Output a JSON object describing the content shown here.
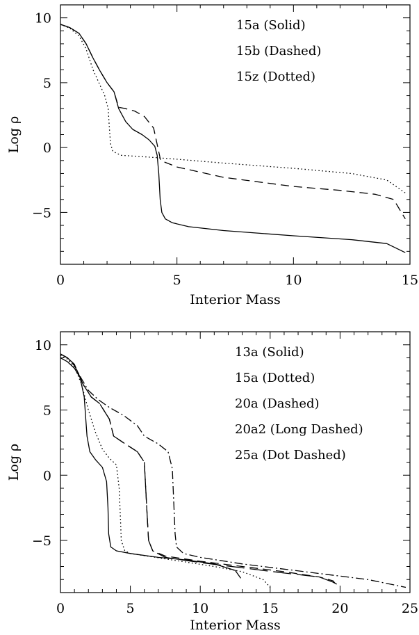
{
  "chart_data": [
    {
      "type": "line",
      "xlabel": "Interior Mass",
      "ylabel": "Log ρ",
      "xlim": [
        0,
        15
      ],
      "ylim": [
        -9,
        11
      ],
      "xticks": [
        0,
        5,
        10,
        15
      ],
      "yticks": [
        -5,
        0,
        5,
        10
      ],
      "grid": false,
      "legend_position": "top-right",
      "legend": [
        "15a (Solid)",
        "15b (Dashed)",
        "15z (Dotted)"
      ],
      "series": [
        {
          "name": "15a",
          "style": "solid",
          "points": [
            [
              0,
              9.5
            ],
            [
              0.4,
              9.25
            ],
            [
              0.8,
              8.8
            ],
            [
              1.1,
              8.0
            ],
            [
              1.4,
              6.9
            ],
            [
              1.7,
              5.9
            ],
            [
              2.0,
              5.0
            ],
            [
              2.3,
              4.3
            ],
            [
              2.5,
              3.0
            ],
            [
              2.8,
              2.0
            ],
            [
              3.1,
              1.4
            ],
            [
              3.5,
              1.0
            ],
            [
              3.8,
              0.6
            ],
            [
              4.05,
              0.1
            ],
            [
              4.15,
              -0.6
            ],
            [
              4.22,
              -2.0
            ],
            [
              4.28,
              -4.0
            ],
            [
              4.35,
              -5.0
            ],
            [
              4.5,
              -5.5
            ],
            [
              4.8,
              -5.8
            ],
            [
              5.5,
              -6.1
            ],
            [
              7.0,
              -6.4
            ],
            [
              10.0,
              -6.8
            ],
            [
              12.5,
              -7.1
            ],
            [
              14.0,
              -7.4
            ],
            [
              14.8,
              -8.1
            ]
          ]
        },
        {
          "name": "15b",
          "style": "dashed",
          "points": [
            [
              0,
              9.5
            ],
            [
              0.4,
              9.25
            ],
            [
              0.8,
              8.8
            ],
            [
              1.1,
              8.0
            ],
            [
              1.4,
              6.9
            ],
            [
              1.7,
              5.9
            ],
            [
              2.0,
              5.0
            ],
            [
              2.3,
              4.3
            ],
            [
              2.5,
              3.1
            ],
            [
              2.8,
              3.0
            ],
            [
              3.2,
              2.8
            ],
            [
              3.6,
              2.4
            ],
            [
              4.0,
              1.5
            ],
            [
              4.3,
              -1.0
            ],
            [
              5.0,
              -1.5
            ],
            [
              7.0,
              -2.3
            ],
            [
              10.0,
              -3.0
            ],
            [
              12.0,
              -3.3
            ],
            [
              13.5,
              -3.6
            ],
            [
              14.3,
              -4.0
            ],
            [
              14.8,
              -5.5
            ]
          ]
        },
        {
          "name": "15z",
          "style": "dotted",
          "points": [
            [
              0,
              9.5
            ],
            [
              0.4,
              9.2
            ],
            [
              0.8,
              8.6
            ],
            [
              1.1,
              7.6
            ],
            [
              1.4,
              6.0
            ],
            [
              1.7,
              4.8
            ],
            [
              1.9,
              4.0
            ],
            [
              2.05,
              3.0
            ],
            [
              2.1,
              1.5
            ],
            [
              2.15,
              0.3
            ],
            [
              2.25,
              -0.3
            ],
            [
              2.6,
              -0.6
            ],
            [
              3.5,
              -0.7
            ],
            [
              5.0,
              -0.9
            ],
            [
              7.0,
              -1.2
            ],
            [
              10.0,
              -1.6
            ],
            [
              12.5,
              -2.0
            ],
            [
              14.0,
              -2.5
            ],
            [
              14.8,
              -3.5
            ]
          ]
        }
      ]
    },
    {
      "type": "line",
      "xlabel": "Interior Mass",
      "ylabel": "Log ρ",
      "xlim": [
        0,
        25
      ],
      "ylim": [
        -9,
        11
      ],
      "xticks": [
        0,
        5,
        10,
        15,
        20,
        25
      ],
      "yticks": [
        -5,
        0,
        5,
        10
      ],
      "grid": false,
      "legend_position": "top-right",
      "legend": [
        "13a (Solid)",
        "15a (Dotted)",
        "20a (Dashed)",
        "20a2 (Long Dashed)",
        "25a (Dot Dashed)"
      ],
      "series": [
        {
          "name": "13a",
          "style": "solid",
          "points": [
            [
              0,
              9.0
            ],
            [
              0.5,
              8.7
            ],
            [
              1.0,
              8.2
            ],
            [
              1.4,
              7.5
            ],
            [
              1.7,
              6.0
            ],
            [
              1.9,
              3.0
            ],
            [
              2.1,
              1.8
            ],
            [
              2.5,
              1.2
            ],
            [
              3.0,
              0.6
            ],
            [
              3.3,
              -0.5
            ],
            [
              3.4,
              -2.5
            ],
            [
              3.45,
              -4.5
            ],
            [
              3.6,
              -5.5
            ],
            [
              4.0,
              -5.8
            ],
            [
              5.0,
              -6.0
            ],
            [
              7.0,
              -6.3
            ],
            [
              9.0,
              -6.5
            ],
            [
              11.0,
              -6.8
            ],
            [
              12.5,
              -7.3
            ],
            [
              12.9,
              -7.9
            ]
          ]
        },
        {
          "name": "15a",
          "style": "dotted",
          "points": [
            [
              0,
              9.2
            ],
            [
              0.5,
              8.9
            ],
            [
              1.0,
              8.3
            ],
            [
              1.5,
              7.0
            ],
            [
              2.0,
              5.0
            ],
            [
              2.5,
              3.3
            ],
            [
              3.0,
              2.0
            ],
            [
              3.5,
              1.3
            ],
            [
              4.0,
              0.8
            ],
            [
              4.2,
              -1.0
            ],
            [
              4.3,
              -3.5
            ],
            [
              4.35,
              -5.0
            ],
            [
              4.6,
              -5.8
            ],
            [
              5.0,
              -6.0
            ],
            [
              8.0,
              -6.5
            ],
            [
              11.0,
              -7.0
            ],
            [
              13.0,
              -7.4
            ],
            [
              14.5,
              -8.0
            ],
            [
              15.0,
              -8.6
            ]
          ]
        },
        {
          "name": "20a",
          "style": "dashed",
          "points": [
            [
              0,
              9.3
            ],
            [
              0.5,
              9.0
            ],
            [
              1.0,
              8.5
            ],
            [
              1.6,
              7.0
            ],
            [
              2.2,
              6.0
            ],
            [
              2.8,
              5.5
            ],
            [
              3.5,
              4.3
            ],
            [
              3.8,
              3.0
            ],
            [
              4.5,
              2.5
            ],
            [
              5.5,
              1.8
            ],
            [
              6.0,
              1.0
            ],
            [
              6.1,
              -1.0
            ],
            [
              6.2,
              -3.0
            ],
            [
              6.3,
              -5.0
            ],
            [
              6.6,
              -5.8
            ],
            [
              7.5,
              -6.2
            ],
            [
              10.0,
              -6.6
            ],
            [
              13.0,
              -7.0
            ],
            [
              16.0,
              -7.4
            ],
            [
              18.5,
              -7.8
            ],
            [
              19.5,
              -8.1
            ],
            [
              19.8,
              -8.5
            ]
          ]
        },
        {
          "name": "20a2",
          "style": "longdash",
          "points": [
            [
              0,
              9.3
            ],
            [
              0.5,
              9.0
            ],
            [
              1.0,
              8.5
            ],
            [
              1.6,
              7.0
            ],
            [
              2.2,
              6.0
            ],
            [
              2.8,
              5.5
            ],
            [
              3.5,
              4.3
            ],
            [
              3.8,
              3.0
            ],
            [
              4.5,
              2.5
            ],
            [
              5.5,
              1.8
            ],
            [
              6.0,
              1.0
            ],
            [
              6.1,
              -1.0
            ],
            [
              6.2,
              -3.0
            ],
            [
              6.3,
              -5.0
            ],
            [
              6.6,
              -5.8
            ],
            [
              7.5,
              -6.3
            ],
            [
              10.0,
              -6.7
            ],
            [
              13.0,
              -7.1
            ],
            [
              16.0,
              -7.5
            ],
            [
              18.5,
              -7.8
            ],
            [
              19.5,
              -8.2
            ],
            [
              20.0,
              -8.5
            ]
          ]
        },
        {
          "name": "25a",
          "style": "dashdot",
          "points": [
            [
              0,
              9.3
            ],
            [
              0.5,
              9.0
            ],
            [
              1.0,
              8.4
            ],
            [
              1.5,
              7.4
            ],
            [
              2.0,
              6.5
            ],
            [
              2.7,
              5.8
            ],
            [
              3.5,
              5.2
            ],
            [
              4.5,
              4.6
            ],
            [
              5.5,
              3.8
            ],
            [
              6.0,
              3.0
            ],
            [
              7.0,
              2.4
            ],
            [
              7.7,
              1.8
            ],
            [
              8.0,
              0.5
            ],
            [
              8.1,
              -2.0
            ],
            [
              8.2,
              -4.5
            ],
            [
              8.3,
              -5.5
            ],
            [
              8.8,
              -6.0
            ],
            [
              10.0,
              -6.3
            ],
            [
              13.0,
              -6.8
            ],
            [
              16.0,
              -7.2
            ],
            [
              19.0,
              -7.6
            ],
            [
              22.0,
              -8.0
            ],
            [
              24.7,
              -8.6
            ]
          ]
        }
      ]
    }
  ]
}
